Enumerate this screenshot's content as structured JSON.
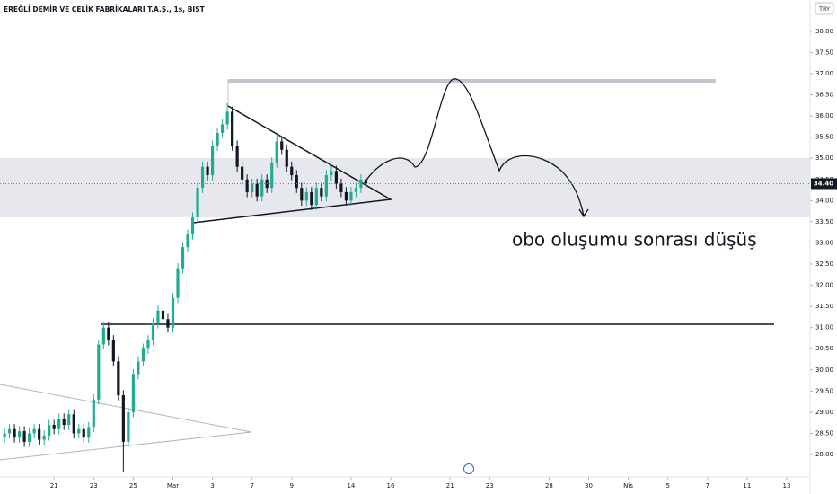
{
  "chart_data": {
    "type": "candlestick",
    "title": "EREĞLİ DEMİR VE ÇELİK FABRİKALARI T.A.Ş., 1s, BIST",
    "currency": "TRY",
    "annotation": "obo oluşumu sonrası düşüş",
    "last_price": {
      "value": 34.4,
      "label": "34.40"
    },
    "up_color": "#22ab94",
    "down_color": "#131722",
    "x": [
      -2.5,
      -2.25,
      -2,
      -1.75,
      -1.5,
      -1.25,
      -1,
      -0.75,
      -0.5,
      -0.25,
      0,
      0.25,
      0.5,
      0.75,
      1,
      1.25,
      1.5,
      1.75,
      2,
      2.25,
      2.5,
      2.75,
      3,
      3.25,
      3.5,
      3.75,
      4,
      4.25,
      4.5,
      4.75,
      5,
      5.25,
      5.5,
      5.75,
      6,
      6.25,
      6.5,
      6.75,
      7,
      7.25,
      7.5,
      7.75,
      8,
      8.25,
      8.5,
      8.75,
      9,
      9.25,
      9.5,
      9.75,
      10,
      10.25,
      10.5,
      10.75,
      11,
      11.25,
      11.5,
      11.75,
      12,
      12.25,
      12.5,
      12.75,
      13,
      13.25,
      13.5,
      13.75,
      14,
      14.25,
      14.5,
      14.75,
      15,
      15.25,
      15.5,
      15.75
    ],
    "open": [
      28.4,
      28.5,
      28.6,
      28.4,
      28.55,
      28.3,
      28.5,
      28.6,
      28.35,
      28.45,
      28.7,
      28.6,
      28.85,
      28.7,
      28.95,
      28.5,
      28.6,
      28.4,
      28.65,
      29.3,
      30.6,
      31.0,
      30.7,
      30.2,
      29.4,
      28.3,
      29.0,
      29.9,
      30.2,
      30.5,
      30.7,
      31.1,
      31.4,
      31.2,
      31.0,
      31.7,
      32.4,
      32.9,
      33.2,
      33.6,
      34.3,
      34.8,
      34.6,
      35.3,
      35.6,
      35.8,
      36.1,
      35.3,
      34.8,
      34.5,
      34.2,
      34.4,
      34.1,
      34.5,
      34.3,
      34.9,
      35.4,
      35.2,
      34.8,
      34.6,
      34.3,
      34.0,
      34.2,
      33.9,
      34.3,
      34.1,
      34.6,
      34.7,
      34.4,
      34.2,
      34.0,
      34.2,
      34.3,
      34.5
    ],
    "high": [
      28.62,
      28.72,
      28.72,
      28.67,
      28.67,
      28.62,
      28.72,
      28.72,
      28.57,
      28.82,
      28.82,
      28.97,
      28.97,
      29.07,
      29.07,
      28.72,
      28.72,
      28.77,
      29.42,
      30.72,
      31.12,
      31.12,
      30.82,
      30.32,
      29.52,
      29.12,
      30.02,
      30.32,
      30.62,
      30.82,
      31.22,
      31.52,
      31.52,
      31.32,
      31.82,
      32.52,
      33.02,
      33.32,
      33.72,
      34.42,
      34.92,
      34.92,
      35.42,
      35.72,
      35.92,
      36.3,
      36.22,
      35.42,
      34.92,
      34.62,
      34.52,
      34.52,
      34.62,
      34.62,
      35.02,
      35.55,
      35.52,
      35.32,
      34.92,
      34.72,
      34.42,
      34.32,
      34.32,
      34.42,
      34.42,
      34.72,
      34.82,
      34.82,
      34.52,
      34.32,
      34.32,
      34.42,
      34.62,
      34.62
    ],
    "low": [
      28.28,
      28.38,
      28.28,
      28.28,
      28.18,
      28.18,
      28.38,
      28.23,
      28.23,
      28.33,
      28.48,
      28.48,
      28.58,
      28.58,
      28.38,
      28.38,
      28.28,
      28.28,
      28.53,
      29.18,
      30.48,
      30.58,
      30.08,
      29.28,
      27.6,
      28.18,
      28.88,
      29.78,
      30.08,
      30.38,
      30.58,
      30.98,
      31.08,
      30.88,
      30.88,
      31.58,
      32.28,
      32.78,
      33.08,
      33.48,
      34.18,
      34.48,
      34.48,
      35.18,
      35.48,
      35.68,
      35.18,
      34.68,
      34.38,
      34.08,
      34.08,
      33.98,
      33.98,
      34.18,
      34.18,
      34.78,
      35.08,
      34.68,
      34.48,
      34.18,
      33.88,
      33.88,
      33.78,
      33.78,
      33.98,
      33.98,
      34.48,
      34.28,
      34.08,
      33.88,
      33.88,
      34.08,
      34.18,
      34.28
    ],
    "close": [
      28.5,
      28.6,
      28.4,
      28.55,
      28.3,
      28.5,
      28.6,
      28.35,
      28.45,
      28.7,
      28.6,
      28.85,
      28.7,
      28.95,
      28.5,
      28.6,
      28.4,
      28.65,
      29.3,
      30.6,
      31.0,
      30.7,
      30.2,
      29.4,
      28.3,
      29.0,
      29.9,
      30.2,
      30.5,
      30.7,
      31.1,
      31.4,
      31.2,
      31.0,
      31.7,
      32.4,
      32.9,
      33.2,
      33.6,
      34.3,
      34.8,
      34.6,
      35.3,
      35.6,
      35.8,
      36.1,
      35.3,
      34.8,
      34.5,
      34.2,
      34.4,
      34.1,
      34.5,
      34.3,
      34.9,
      35.4,
      35.2,
      34.8,
      34.6,
      34.3,
      34.0,
      34.2,
      33.9,
      34.3,
      34.1,
      34.6,
      34.7,
      34.4,
      34.2,
      34.0,
      34.2,
      34.3,
      34.5,
      34.4
    ],
    "xlim": [
      -2.73,
      38.18
    ],
    "xticks": [
      {
        "value": 0,
        "label": "21"
      },
      {
        "value": 2,
        "label": "23"
      },
      {
        "value": 4,
        "label": "25"
      },
      {
        "value": 6,
        "label": "Mar"
      },
      {
        "value": 8,
        "label": "3"
      },
      {
        "value": 10,
        "label": "7"
      },
      {
        "value": 12,
        "label": "9"
      },
      {
        "value": 15,
        "label": "14"
      },
      {
        "value": 17,
        "label": "16"
      },
      {
        "value": 20,
        "label": "21"
      },
      {
        "value": 22,
        "label": "23"
      },
      {
        "value": 25,
        "label": "28"
      },
      {
        "value": 27,
        "label": "30"
      },
      {
        "value": 29,
        "label": "Nis"
      },
      {
        "value": 31,
        "label": "5"
      },
      {
        "value": 33,
        "label": "7"
      },
      {
        "value": 35,
        "label": "11"
      },
      {
        "value": 37,
        "label": "13"
      }
    ],
    "ylim": [
      27.47,
      38.74
    ],
    "yticks": [
      {
        "value": 28,
        "label": "28.00"
      },
      {
        "value": 28.5,
        "label": "28.50"
      },
      {
        "value": 29,
        "label": "29.00"
      },
      {
        "value": 29.5,
        "label": "29.50"
      },
      {
        "value": 30,
        "label": "30.00"
      },
      {
        "value": 30.5,
        "label": "30.50"
      },
      {
        "value": 31,
        "label": "31.00"
      },
      {
        "value": 31.5,
        "label": "31.50"
      },
      {
        "value": 32,
        "label": "32.00"
      },
      {
        "value": 32.5,
        "label": "32.50"
      },
      {
        "value": 33,
        "label": "33.00"
      },
      {
        "value": 33.5,
        "label": "33.50"
      },
      {
        "value": 34,
        "label": "34.00"
      },
      {
        "value": 34.5,
        "label": "34.50"
      },
      {
        "value": 35,
        "label": "35.00"
      },
      {
        "value": 35.5,
        "label": "35.50"
      },
      {
        "value": 36,
        "label": "36.00"
      },
      {
        "value": 36.5,
        "label": "36.50"
      },
      {
        "value": 37,
        "label": "37.00"
      },
      {
        "value": 37.5,
        "label": "37.50"
      },
      {
        "value": 38,
        "label": "38.00"
      }
    ]
  }
}
